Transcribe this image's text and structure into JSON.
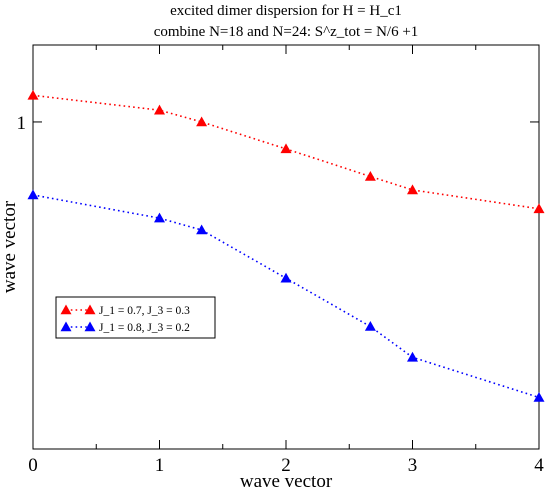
{
  "chart_data": {
    "type": "line",
    "title": "excited dimer dispersion for H = H_c1",
    "subtitle": "combine N=18 and N=24: S^z_tot = N/6 +1",
    "xlabel": "wave vector",
    "ylabel": "wave vector",
    "xlim": [
      0,
      4
    ],
    "ylim": [
      0.49,
      1.12
    ],
    "x_ticks": [
      "0",
      "1",
      "2",
      "3",
      "4"
    ],
    "y_ticks": [
      "1"
    ],
    "y_tick_values": [
      1
    ],
    "grid": false,
    "legend_position": "left-middle",
    "series": [
      {
        "name": "J_1 = 0.7, J_3 = 0.3",
        "color": "#ff0000",
        "marker": "triangle",
        "linestyle": "dotted",
        "x": [
          0,
          1,
          1.333,
          2,
          2.667,
          3,
          4
        ],
        "y": [
          1.0415,
          1.0184,
          1.0,
          0.958,
          0.915,
          0.894,
          0.8646
        ]
      },
      {
        "name": "J_1 = 0.8, J_3 = 0.2",
        "color": "#0000ff",
        "marker": "triangle",
        "linestyle": "dotted",
        "x": [
          0,
          1,
          1.333,
          2,
          2.667,
          3,
          4
        ],
        "y": [
          0.8862,
          0.85,
          0.8315,
          0.7563,
          0.681,
          0.633,
          0.5704
        ]
      }
    ]
  }
}
